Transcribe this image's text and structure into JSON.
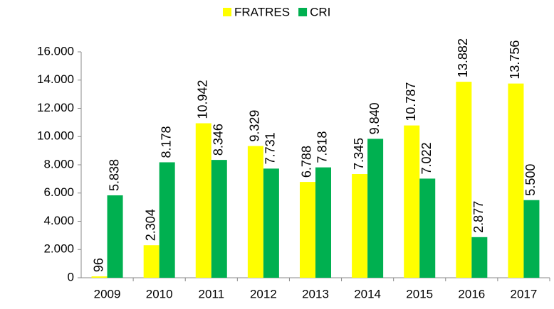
{
  "chart_data": {
    "type": "bar",
    "categories": [
      "2009",
      "2010",
      "2011",
      "2012",
      "2013",
      "2014",
      "2015",
      "2016",
      "2017"
    ],
    "series": [
      {
        "name": "FRATRES",
        "color": "#ffff00",
        "values": [
          96,
          2304,
          10942,
          9329,
          6788,
          7345,
          10787,
          13882,
          13756
        ],
        "value_labels": [
          "96",
          "2.304",
          "10.942",
          "9.329",
          "6.788",
          "7.345",
          "10.787",
          "13.882",
          "13.756"
        ]
      },
      {
        "name": "CRI",
        "color": "#00b050",
        "values": [
          5838,
          8178,
          8346,
          7731,
          7818,
          9840,
          7022,
          2877,
          5500
        ],
        "value_labels": [
          "5.838",
          "8.178",
          "8.346",
          "7.731",
          "7.818",
          "9.840",
          "7.022",
          "2.877",
          "5.500"
        ]
      }
    ],
    "ylim": [
      0,
      16000
    ],
    "yticks": [
      0,
      {
        "value": 2000,
        "label": "2.000"
      },
      {
        "value": 4000,
        "label": "4.000"
      },
      {
        "value": 6000,
        "label": "6.000"
      },
      {
        "value": 8000,
        "label": "8.000"
      },
      {
        "value": 10000,
        "label": "10.000"
      },
      {
        "value": 12000,
        "label": "12.000"
      },
      {
        "value": 14000,
        "label": "14.000"
      },
      {
        "value": 16000,
        "label": "16.000"
      }
    ],
    "grid": false,
    "legend": "top"
  }
}
